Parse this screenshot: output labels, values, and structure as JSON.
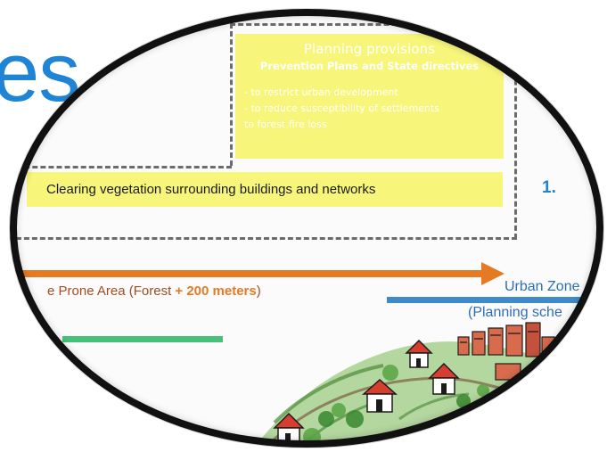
{
  "background_heading": {
    "text": "es"
  },
  "diagram": {
    "planning_provisions": {
      "title": "Planning provisions",
      "subtitle": "Prevention Plans and State directives",
      "lines": [
        "- to restrict urban development",
        "- to reduce susceptibility of settlements",
        "to forest fire loss"
      ]
    },
    "clearing_box": {
      "label": "Clearing vegetation surrounding buildings and networks"
    },
    "step_number": "1.",
    "fire_prone_area": {
      "label_prefix": "e Prone Area (Forest ",
      "label_bold": "+ 200 meters",
      "label_suffix": ")"
    },
    "urban_zone": {
      "label": "Urban Zone",
      "sub_label": "(Planning sche"
    }
  },
  "colors": {
    "accent_blue": "#1f84d6",
    "highlight_yellow": "#f7f57a",
    "fire_orange": "#e57a25",
    "urban_blue": "#3f8ac9",
    "vegetation_green": "#47c07a",
    "rim_black": "#111111"
  },
  "icons": {
    "magnifier": "circular-zoom-lens",
    "settlement": "hand-drawn-village-sketch"
  }
}
